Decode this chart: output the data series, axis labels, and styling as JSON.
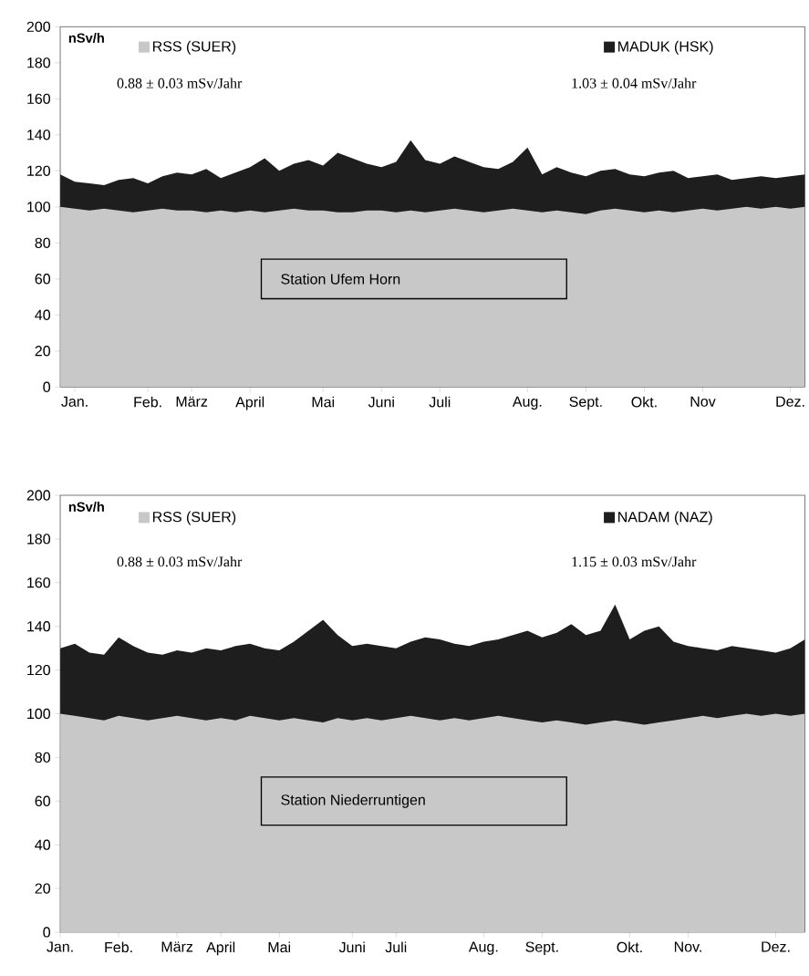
{
  "chart_data": [
    {
      "type": "area",
      "title": "Station Ufem Horn",
      "ylabel": "nSv/h",
      "legend": "top",
      "ylim": [
        0,
        200
      ],
      "yticks": [
        0,
        20,
        40,
        60,
        80,
        100,
        120,
        140,
        160,
        180,
        200
      ],
      "categories": [
        null,
        "Jan.",
        null,
        null,
        null,
        null,
        "Feb.",
        null,
        null,
        "März",
        null,
        null,
        null,
        "April",
        null,
        null,
        null,
        null,
        "Mai",
        null,
        null,
        null,
        "Juni",
        null,
        null,
        null,
        "Juli",
        null,
        null,
        null,
        null,
        null,
        "Aug.",
        null,
        null,
        null,
        "Sept.",
        null,
        null,
        null,
        "Okt.",
        null,
        null,
        null,
        "Nov",
        null,
        null,
        null,
        null,
        null,
        "Dez.",
        null
      ],
      "series": [
        {
          "name": "MADUK (HSK)",
          "color": "#1e1e1e",
          "values": [
            118,
            114,
            113,
            112,
            115,
            116,
            113,
            117,
            119,
            118,
            121,
            116,
            119,
            122,
            127,
            120,
            124,
            126,
            123,
            130,
            127,
            124,
            122,
            125,
            137,
            126,
            124,
            128,
            125,
            122,
            121,
            125,
            133,
            118,
            122,
            119,
            117,
            120,
            121,
            118,
            117,
            119,
            120,
            116,
            117,
            118,
            115,
            116,
            117,
            116,
            117,
            118
          ]
        },
        {
          "name": "RSS (SUER)",
          "color": "#c8c8c8",
          "values": [
            100,
            99,
            98,
            99,
            98,
            97,
            98,
            99,
            98,
            98,
            97,
            98,
            97,
            98,
            97,
            98,
            99,
            98,
            98,
            97,
            97,
            98,
            98,
            97,
            98,
            97,
            98,
            99,
            98,
            97,
            98,
            99,
            98,
            97,
            98,
            97,
            96,
            98,
            99,
            98,
            97,
            98,
            97,
            98,
            99,
            98,
            99,
            100,
            99,
            100,
            99,
            100
          ]
        }
      ],
      "annotations": [
        "1.03 ± 0.04 mSv/Jahr",
        "0.88 ± 0.03 mSv/Jahr"
      ]
    },
    {
      "type": "area",
      "title": "Station Niederruntigen",
      "ylabel": "nSv/h",
      "legend": "top",
      "ylim": [
        0,
        200
      ],
      "yticks": [
        0,
        20,
        40,
        60,
        80,
        100,
        120,
        140,
        160,
        180,
        200
      ],
      "categories": [
        "Jan.",
        null,
        null,
        null,
        "Feb.",
        null,
        null,
        null,
        "März",
        null,
        null,
        "April",
        null,
        null,
        null,
        "Mai",
        null,
        null,
        null,
        null,
        "Juni",
        null,
        null,
        "Juli",
        null,
        null,
        null,
        null,
        null,
        "Aug.",
        null,
        null,
        null,
        "Sept.",
        null,
        null,
        null,
        null,
        null,
        "Okt.",
        null,
        null,
        null,
        "Nov.",
        null,
        null,
        null,
        null,
        null,
        "Dez.",
        null,
        null
      ],
      "series": [
        {
          "name": "NADAM (NAZ)",
          "color": "#1e1e1e",
          "values": [
            130,
            132,
            128,
            127,
            135,
            131,
            128,
            127,
            129,
            128,
            130,
            129,
            131,
            132,
            130,
            129,
            133,
            138,
            143,
            136,
            131,
            132,
            131,
            130,
            133,
            135,
            134,
            132,
            131,
            133,
            134,
            136,
            138,
            135,
            137,
            141,
            136,
            138,
            150,
            134,
            138,
            140,
            133,
            131,
            130,
            129,
            131,
            130,
            129,
            128,
            130,
            134
          ]
        },
        {
          "name": "RSS (SUER)",
          "color": "#c8c8c8",
          "values": [
            100,
            99,
            98,
            97,
            99,
            98,
            97,
            98,
            99,
            98,
            97,
            98,
            97,
            99,
            98,
            97,
            98,
            97,
            96,
            98,
            97,
            98,
            97,
            98,
            99,
            98,
            97,
            98,
            97,
            98,
            99,
            98,
            97,
            96,
            97,
            96,
            95,
            96,
            97,
            96,
            95,
            96,
            97,
            98,
            99,
            98,
            99,
            100,
            99,
            100,
            99,
            100
          ]
        }
      ],
      "annotations": [
        "1.15 ± 0.03 mSv/Jahr",
        "0.88 ± 0.03 mSv/Jahr"
      ]
    }
  ]
}
